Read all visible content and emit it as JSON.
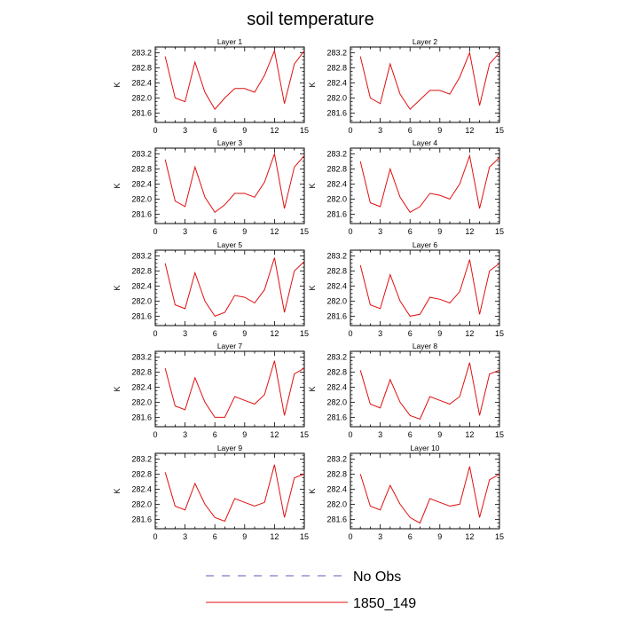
{
  "chart_data": {
    "type": "line",
    "title": "soil temperature",
    "ylabel": "K",
    "xlim": [
      0,
      15
    ],
    "ylim": [
      281.35,
      283.35
    ],
    "xticks": [
      0,
      3,
      6,
      9,
      12,
      15
    ],
    "yticks": [
      281.6,
      282.0,
      282.4,
      282.8,
      283.2
    ],
    "ytick_labels": [
      "281.6",
      "282.0",
      "282.4",
      "282.8",
      "283.2"
    ],
    "x": [
      1,
      2,
      3,
      4,
      5,
      6,
      7,
      8,
      9,
      10,
      11,
      12,
      13,
      14,
      15
    ],
    "panels": [
      {
        "title": "Layer 1",
        "values": [
          283.1,
          282.0,
          281.9,
          282.95,
          282.15,
          281.7,
          282.0,
          282.25,
          282.25,
          282.15,
          282.6,
          283.25,
          281.85,
          282.9,
          283.25
        ]
      },
      {
        "title": "Layer 2",
        "values": [
          283.1,
          282.0,
          281.85,
          282.9,
          282.1,
          281.7,
          281.95,
          282.2,
          282.2,
          282.1,
          282.55,
          283.2,
          281.8,
          282.9,
          283.2
        ]
      },
      {
        "title": "Layer 3",
        "values": [
          283.05,
          281.95,
          281.8,
          282.85,
          282.05,
          281.65,
          281.85,
          282.15,
          282.15,
          282.05,
          282.45,
          283.2,
          281.75,
          282.85,
          283.15
        ]
      },
      {
        "title": "Layer 4",
        "values": [
          283.0,
          281.9,
          281.8,
          282.8,
          282.05,
          281.65,
          281.8,
          282.15,
          282.1,
          282.0,
          282.4,
          283.15,
          281.75,
          282.85,
          283.1
        ]
      },
      {
        "title": "Layer 5",
        "values": [
          283.0,
          281.9,
          281.8,
          282.75,
          282.0,
          281.6,
          281.7,
          282.15,
          282.1,
          281.95,
          282.3,
          283.15,
          281.7,
          282.8,
          283.05
        ]
      },
      {
        "title": "Layer 6",
        "values": [
          282.95,
          281.9,
          281.8,
          282.7,
          282.0,
          281.6,
          281.65,
          282.1,
          282.05,
          281.95,
          282.25,
          283.1,
          281.65,
          282.8,
          283.0
        ]
      },
      {
        "title": "Layer 7",
        "values": [
          282.9,
          281.9,
          281.8,
          282.65,
          282.0,
          281.6,
          281.6,
          282.15,
          282.05,
          281.95,
          282.2,
          283.1,
          281.65,
          282.75,
          282.9
        ]
      },
      {
        "title": "Layer 8",
        "values": [
          282.85,
          281.95,
          281.85,
          282.6,
          282.0,
          281.65,
          281.55,
          282.15,
          282.05,
          281.95,
          282.15,
          283.05,
          281.65,
          282.75,
          282.85
        ]
      },
      {
        "title": "Layer 9",
        "values": [
          282.85,
          281.95,
          281.85,
          282.55,
          282.0,
          281.65,
          281.55,
          282.15,
          282.05,
          281.95,
          282.05,
          283.05,
          281.65,
          282.7,
          282.8
        ]
      },
      {
        "title": "Layer 10",
        "values": [
          282.8,
          281.95,
          281.85,
          282.5,
          282.0,
          281.65,
          281.5,
          282.15,
          282.05,
          281.95,
          282.0,
          283.0,
          281.65,
          282.65,
          282.8
        ]
      }
    ],
    "legend": [
      {
        "label": "No Obs",
        "color": "#5a5ab4",
        "style": "dashed"
      },
      {
        "label": "1850_149",
        "color": "#e01010",
        "style": "solid"
      }
    ],
    "series_color": "#e01010"
  }
}
